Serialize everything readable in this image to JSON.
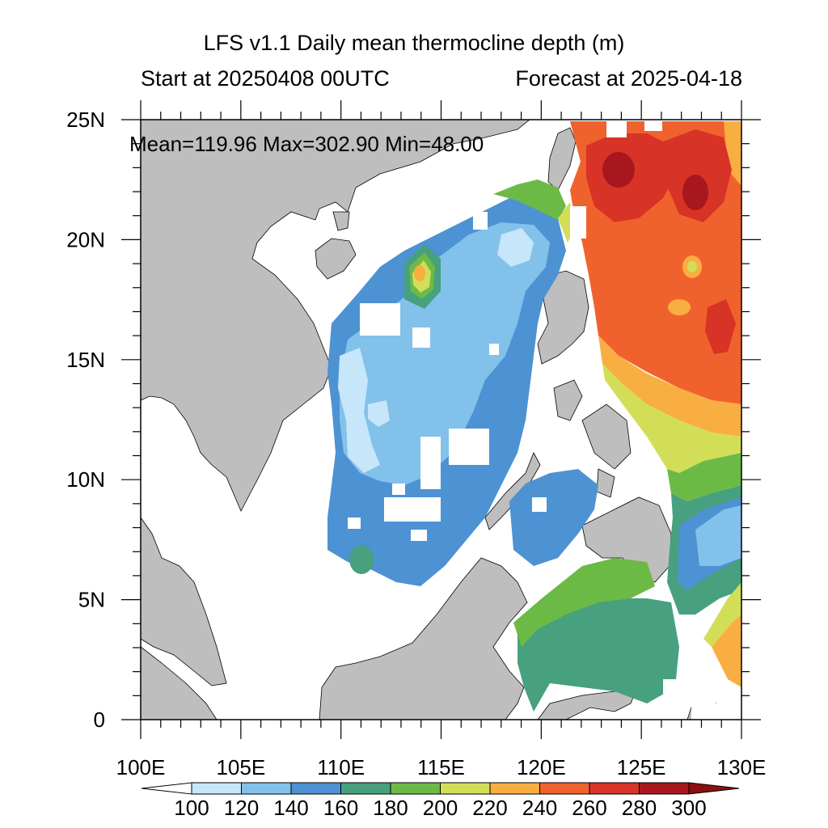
{
  "title": "LFS v1.1 Daily mean thermocline depth (m)",
  "subtitle_left": "Start at 20250408 00UTC",
  "subtitle_right": "Forecast at 2025-04-18",
  "stats": "Mean=119.96  Max=302.90  Min=48.00",
  "map": {
    "lon_range": [
      100,
      130
    ],
    "lat_range": [
      0,
      25
    ],
    "lon_ticks": [
      "100E",
      "105E",
      "110E",
      "115E",
      "120E",
      "125E",
      "130E"
    ],
    "lat_ticks": [
      "0",
      "5N",
      "10N",
      "15N",
      "20N",
      "25N"
    ],
    "land_color": "#bebebe",
    "missing_color": "#ffffff"
  },
  "colorbar": {
    "levels": [
      "100",
      "120",
      "140",
      "160",
      "180",
      "200",
      "220",
      "240",
      "260",
      "280",
      "300"
    ],
    "colors": [
      "#ffffff",
      "#c7e6f9",
      "#82c1ea",
      "#4d92d2",
      "#47a07e",
      "#6cba46",
      "#d2de58",
      "#f9ae42",
      "#f0622d",
      "#d83327",
      "#a8171d",
      "#8c1010"
    ]
  }
}
